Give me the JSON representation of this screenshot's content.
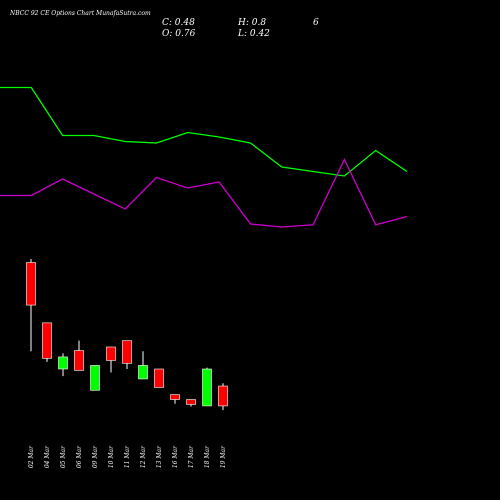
{
  "header": {
    "title": "NBCC 92 CE Options Chart MunafaSutra.com",
    "close_label": "C: 0.48",
    "high_label": "H: 0.8",
    "open_label": "O: 0.76",
    "low_label": "L: 0.42",
    "extra": "6"
  },
  "colors": {
    "background": "#000000",
    "up": "#00ff00",
    "down": "#ff0000",
    "line_green": "#00ff00",
    "line_magenta": "#cc00cc",
    "text": "#ffffff"
  },
  "chart_data": [
    {
      "type": "line",
      "series": [
        {
          "values": [
            9.5,
            9.5,
            6.3,
            6.3,
            5.9,
            5.8,
            6.5,
            6.2,
            5.8,
            4.2,
            3.9,
            3.6,
            5.3,
            3.9
          ]
        }
      ]
    },
    {
      "type": "line",
      "series": [
        {
          "values": [
            2.3,
            2.3,
            3.4,
            2.4,
            1.4,
            3.5,
            2.8,
            3.2,
            0.4,
            0.2,
            0.35,
            4.7,
            0.35,
            0.9
          ]
        }
      ]
    },
    {
      "type": "candlestick",
      "categories": [
        "02 Mar",
        "04 Mar",
        "05 Mar",
        "06 Mar",
        "09 Mar",
        "10 Mar",
        "11 Mar",
        "12 Mar",
        "13 Mar",
        "16 Mar",
        "17 Mar",
        "18 Mar",
        "19 Mar"
      ],
      "ohlc": [
        {
          "o": 2.5,
          "h": 2.55,
          "l": 1.25,
          "c": 1.9
        },
        {
          "o": 1.65,
          "h": 1.65,
          "l": 1.1,
          "c": 1.15
        },
        {
          "o": 1.0,
          "h": 1.22,
          "l": 0.9,
          "c": 1.17
        },
        {
          "o": 1.26,
          "h": 1.4,
          "l": 1.0,
          "c": 0.98
        },
        {
          "o": 0.7,
          "h": 1.05,
          "l": 0.7,
          "c": 1.05
        },
        {
          "o": 1.31,
          "h": 1.31,
          "l": 0.95,
          "c": 1.12
        },
        {
          "o": 1.4,
          "h": 1.4,
          "l": 1.0,
          "c": 1.08
        },
        {
          "o": 0.86,
          "h": 1.25,
          "l": 0.86,
          "c": 1.05
        },
        {
          "o": 1.0,
          "h": 1.0,
          "l": 0.74,
          "c": 0.74
        },
        {
          "o": 0.64,
          "h": 0.64,
          "l": 0.51,
          "c": 0.57
        },
        {
          "o": 0.57,
          "h": 0.57,
          "l": 0.47,
          "c": 0.5
        },
        {
          "o": 0.48,
          "h": 1.02,
          "l": 0.48,
          "c": 1.0
        },
        {
          "o": 0.76,
          "h": 0.8,
          "l": 0.42,
          "c": 0.48
        }
      ]
    }
  ]
}
